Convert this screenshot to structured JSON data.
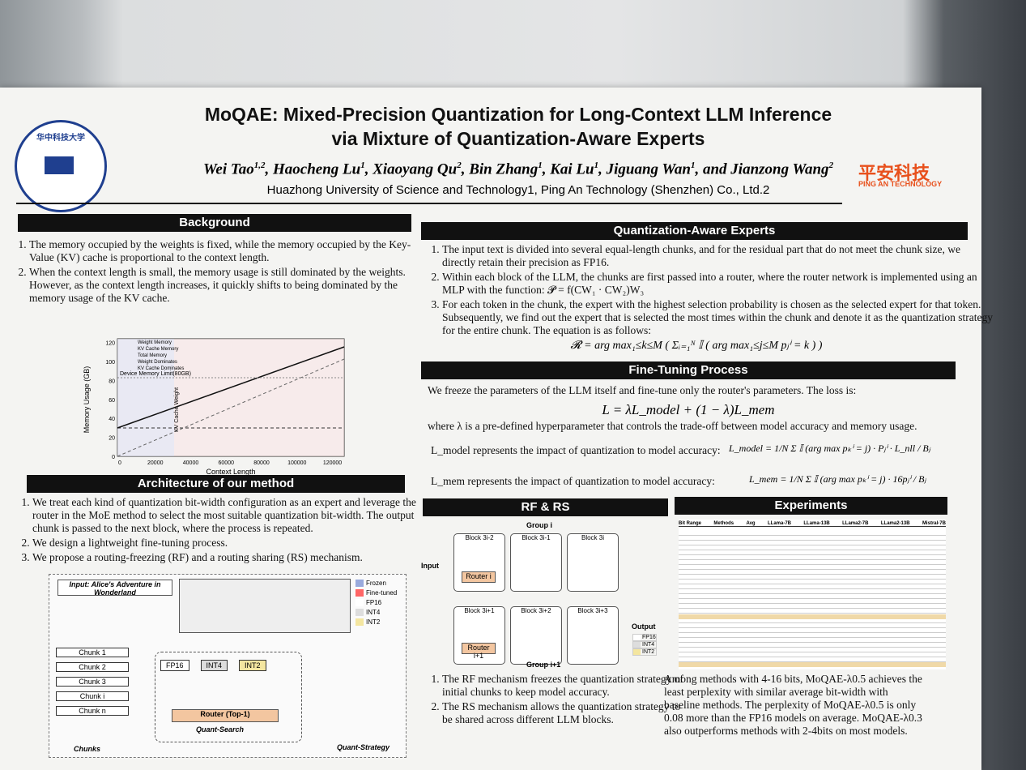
{
  "header": {
    "title_line1": "MoQAE: Mixed-Precision Quantization for Long-Context LLM Inference",
    "title_line2": "via Mixture of Quantization-Aware Experts",
    "authors": [
      {
        "name": "Wei Tao",
        "sup": "1,2"
      },
      {
        "name": "Haocheng Lu",
        "sup": "1"
      },
      {
        "name": "Xiaoyang Qu",
        "sup": "2"
      },
      {
        "name": "Bin Zhang",
        "sup": "1"
      },
      {
        "name": "Kai Lu",
        "sup": "1"
      },
      {
        "name": "Jiguang Wan",
        "sup": "1"
      },
      {
        "name": "and Jianzong Wang",
        "sup": "2"
      }
    ],
    "affiliation": "Huazhong University of Science and Technology1, Ping An Technology (Shenzhen) Co., Ltd.2",
    "logo_left": "华中科技大学",
    "logo_right": "平安科技",
    "logo_right_sub": "PING AN TECHNOLOGY"
  },
  "background": {
    "heading": "Background",
    "items": [
      "The memory occupied by the weights is fixed, while the memory occupied by the Key-Value (KV) cache is proportional to the context length.",
      "When the context length is small, the memory usage is still dominated by the weights. However, as the context length increases, it quickly shifts to being dominated by the memory usage of the KV cache."
    ],
    "chart": {
      "y_label": "Memory Usage (GB)",
      "x_label": "Context Length",
      "legend": [
        "Weight Memory",
        "KV Cache Memory",
        "Total Memory",
        "Weight Dominates",
        "KV Cache Dominates"
      ],
      "yticks": [
        "0",
        "20",
        "40",
        "60",
        "80",
        "100",
        "120"
      ],
      "xticks": [
        "0",
        "20000",
        "40000",
        "60000",
        "80000",
        "100000",
        "120000"
      ],
      "limit_label": "Device Memory Limit(80GB)",
      "region_label": "KV Cache Weight"
    }
  },
  "architecture": {
    "heading": "Architecture of our method",
    "items": [
      "We treat each kind of quantization bit-width configuration as an expert and leverage the router in the MoE method to select the most suitable quantization bit-width. The output chunk is passed to the next block, where the process is repeated.",
      "We design a lightweight fine-tuning process.",
      "We propose a routing-freezing (RF) and a routing sharing (RS) mechanism."
    ],
    "diagram": {
      "input": "Input: Alice's Adventure in Wonderland",
      "chunks": [
        "Chunk 1",
        "Chunk 2",
        "Chunk 3",
        "Chunk i",
        "Chunk n"
      ],
      "precisions": [
        "FP16",
        "INT4",
        "INT2"
      ],
      "router": "Router (Top-1)",
      "quant_search": "Quant-Search",
      "quant_strategy": "Quant-Strategy",
      "chunks_label": "Chunks",
      "legend": [
        "Frozen",
        "Fine-tuned",
        "FP16",
        "INT4",
        "INT2"
      ]
    }
  },
  "qae": {
    "heading": "Quantization-Aware Experts",
    "items": [
      "The input text is divided into several equal-length chunks, and for the residual part that do not meet the chunk size, we directly retain their precision as FP16.",
      "Within each block of the LLM, the chunks are first passed into a router, where the router network is implemented using an MLP with the function:  𝓟 = f(CW₁ · CW₂)W₃",
      "For each token in the chunk, the expert with the highest selection probability is chosen as the selected expert for that token. Subsequently, we find out the expert that is selected the most times within the chunk and denote it as the quantization strategy for the entire chunk. The equation is as follows:"
    ],
    "equation": "𝓡 = arg max₁≤k≤M ( Σᵢ₌₁ᴺ 𝕀 ( arg max₁≤j≤M pⱼⁱ = k ) )"
  },
  "finetune": {
    "heading": "Fine-Tuning Process",
    "intro": "We freeze the parameters of the LLM itself and fine-tune only the router's parameters. The loss is:",
    "loss": "L = λL_model + (1 − λ)L_mem",
    "where": "where λ is a pre-defined hyperparameter that controls the trade-off between model accuracy and memory usage.",
    "lmodel": "L_model represents the impact of quantization to model accuracy:",
    "lmodel_eq": "L_model = 1/N Σ 𝕀 (arg max pₖⁱ = j) · Pⱼⁱ · L_nll / Bⱼ",
    "lmem": "L_mem represents the impact of quantization to model accuracy:",
    "lmem_eq": "L_mem = 1/N Σ 𝕀 (arg max pₖⁱ = j) · 16pⱼⁱ / Bⱼ"
  },
  "rfrs": {
    "heading": "RF & RS",
    "items": [
      "The RF mechanism freezes the quantization strategy of initial chunks to keep model accuracy.",
      "The RS mechanism allows the quantization strategy to be shared across different LLM blocks."
    ],
    "diagram": {
      "group_i": "Group i",
      "group_i1": "Group i+1",
      "input": "Input",
      "output": "Output",
      "blocks": [
        "Block 3i-2",
        "Block 3i-1",
        "Block 3i",
        "Block 3i+1",
        "Block 3i+2",
        "Block 3i+3"
      ],
      "router_i": "Router i",
      "router_i1": "Router i+1",
      "legend": [
        "FP16",
        "INT4",
        "INT2"
      ]
    }
  },
  "experiments": {
    "heading": "Experiments",
    "columns": [
      "Bit Range",
      "Methods",
      "Avg",
      "LLama-7B",
      "LLama-13B",
      "LLama2-7B",
      "LLama2-13B",
      "Mistral-7B"
    ],
    "summary": "Among methods with 4-16 bits, MoQAE-λ0.5 achieves the least perplexity with similar average bit-width with baseline methods. The perplexity of MoQAE-λ0.5 is only 0.08 more than the FP16 models on average. MoQAE-λ0.3 also outperforms methods with 2-4bits on most models."
  }
}
